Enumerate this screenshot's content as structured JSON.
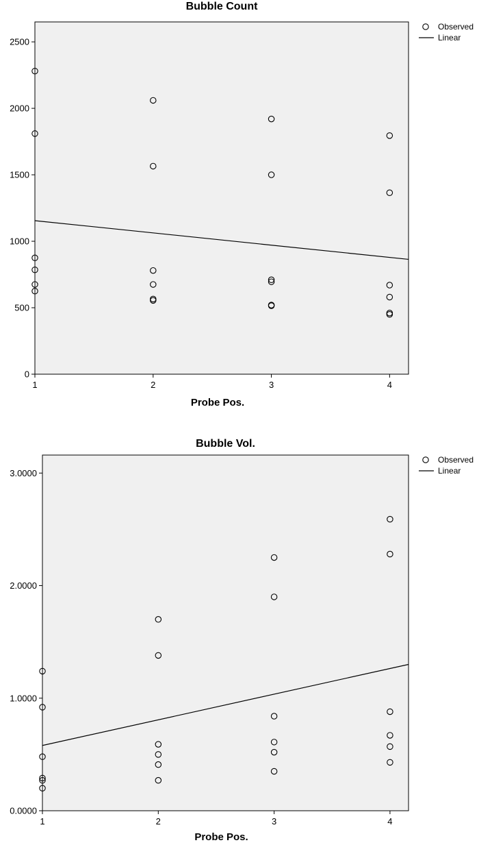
{
  "chart_data": [
    {
      "type": "scatter",
      "title": "Bubble Count",
      "xlabel": "Probe Pos.",
      "ylabel": "",
      "xlim": [
        1,
        4.16
      ],
      "ylim": [
        0,
        2650
      ],
      "x_ticks": [
        1,
        2,
        3,
        4
      ],
      "y_ticks": [
        0,
        500,
        1000,
        1500,
        2000,
        2500
      ],
      "y_tick_labels": [
        "0",
        "500",
        "1000",
        "1500",
        "2000",
        "2500"
      ],
      "legend": {
        "placement": "top-right",
        "entries": [
          "Observed",
          "Linear"
        ]
      },
      "series": [
        {
          "name": "Observed",
          "points": [
            [
              1,
              2280
            ],
            [
              1,
              1810
            ],
            [
              1,
              875
            ],
            [
              1,
              785
            ],
            [
              1,
              675
            ],
            [
              1,
              625
            ],
            [
              2,
              2060
            ],
            [
              2,
              1565
            ],
            [
              2,
              780
            ],
            [
              2,
              675
            ],
            [
              2,
              565
            ],
            [
              2,
              555
            ],
            [
              3,
              1920
            ],
            [
              3,
              1500
            ],
            [
              3,
              710
            ],
            [
              3,
              695
            ],
            [
              3,
              520
            ],
            [
              3,
              515
            ],
            [
              4,
              1795
            ],
            [
              4,
              1365
            ],
            [
              4,
              670
            ],
            [
              4,
              580
            ],
            [
              4,
              460
            ],
            [
              4,
              450
            ]
          ]
        },
        {
          "name": "Linear",
          "line": [
            [
              1,
              1155
            ],
            [
              4.16,
              864
            ]
          ]
        }
      ]
    },
    {
      "type": "scatter",
      "title": "Bubble Vol.",
      "xlabel": "Probe Pos.",
      "ylabel": "",
      "xlim": [
        1,
        4.16
      ],
      "ylim": [
        0,
        3.16
      ],
      "x_ticks": [
        1,
        2,
        3,
        4
      ],
      "y_ticks": [
        0,
        1,
        2,
        3
      ],
      "y_tick_labels": [
        "0.0000",
        "1.0000",
        "2.0000",
        "3.0000"
      ],
      "legend": {
        "placement": "top-right",
        "entries": [
          "Observed",
          "Linear"
        ]
      },
      "series": [
        {
          "name": "Observed",
          "points": [
            [
              1,
              1.24
            ],
            [
              1,
              0.92
            ],
            [
              1,
              0.48
            ],
            [
              1,
              0.29
            ],
            [
              1,
              0.27
            ],
            [
              1,
              0.2
            ],
            [
              2,
              1.7
            ],
            [
              2,
              1.38
            ],
            [
              2,
              0.59
            ],
            [
              2,
              0.5
            ],
            [
              2,
              0.41
            ],
            [
              2,
              0.27
            ],
            [
              3,
              2.25
            ],
            [
              3,
              1.9
            ],
            [
              3,
              0.84
            ],
            [
              3,
              0.61
            ],
            [
              3,
              0.52
            ],
            [
              3,
              0.35
            ],
            [
              4,
              2.59
            ],
            [
              4,
              2.28
            ],
            [
              4,
              0.88
            ],
            [
              4,
              0.67
            ],
            [
              4,
              0.57
            ],
            [
              4,
              0.43
            ]
          ]
        },
        {
          "name": "Linear",
          "line": [
            [
              1,
              0.58
            ],
            [
              4.16,
              1.3
            ]
          ]
        }
      ]
    }
  ]
}
